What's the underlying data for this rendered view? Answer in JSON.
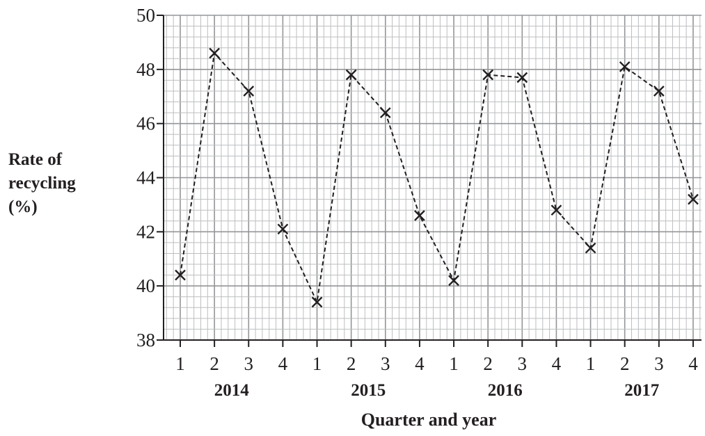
{
  "chart_data": {
    "type": "line",
    "title": "",
    "ylabel_lines": [
      "Rate of",
      "recycling",
      "(%)"
    ],
    "xlabel": "Quarter and year",
    "ylim": [
      38,
      50
    ],
    "y_major_step": 2,
    "y_minor_step": 0.4,
    "y_ticks": [
      "38",
      "40",
      "42",
      "44",
      "46",
      "48",
      "50"
    ],
    "x_minor_per_quarter": 5,
    "grid": true,
    "line_style": "dashed",
    "marker": "cross",
    "colors": {
      "line": "#231f20",
      "grid_minor": "#bcbec0",
      "grid_major": "#939598",
      "axis": "#231f20"
    },
    "x": [
      {
        "quarter": "1",
        "year": "2014"
      },
      {
        "quarter": "2",
        "year": "2014"
      },
      {
        "quarter": "3",
        "year": "2014"
      },
      {
        "quarter": "4",
        "year": "2014"
      },
      {
        "quarter": "1",
        "year": "2015"
      },
      {
        "quarter": "2",
        "year": "2015"
      },
      {
        "quarter": "3",
        "year": "2015"
      },
      {
        "quarter": "4",
        "year": "2015"
      },
      {
        "quarter": "1",
        "year": "2016"
      },
      {
        "quarter": "2",
        "year": "2016"
      },
      {
        "quarter": "3",
        "year": "2016"
      },
      {
        "quarter": "4",
        "year": "2016"
      },
      {
        "quarter": "1",
        "year": "2017"
      },
      {
        "quarter": "2",
        "year": "2017"
      },
      {
        "quarter": "3",
        "year": "2017"
      },
      {
        "quarter": "4",
        "year": "2017"
      }
    ],
    "years": [
      "2014",
      "2015",
      "2016",
      "2017"
    ],
    "series": [
      {
        "values": [
          40.4,
          48.6,
          47.2,
          42.1,
          39.4,
          47.8,
          46.4,
          42.6,
          40.2,
          47.8,
          47.7,
          42.8,
          41.4,
          48.1,
          47.2,
          43.2
        ]
      }
    ]
  }
}
